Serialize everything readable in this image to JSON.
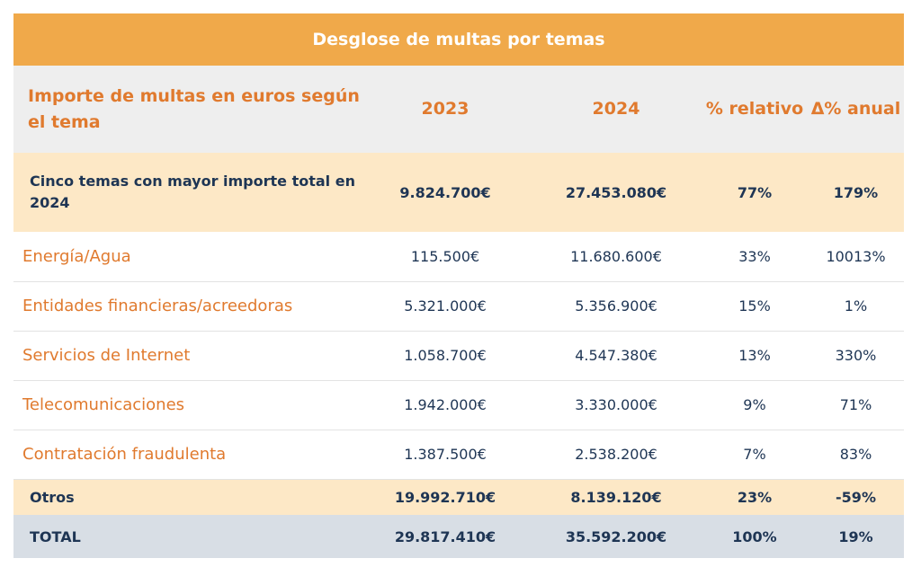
{
  "title": "Desglose de multas por temas",
  "colors": {
    "header_bg": "#F0A94A",
    "accent": "#E07A2E",
    "text_dark": "#1E3554",
    "highlight_row": "#FDE8C6",
    "column_header_bg": "#EEEEEE",
    "total_row": "#D8DEE5"
  },
  "columns": {
    "topic": "Importe de multas en euros según el tema",
    "y2023": "2023",
    "y2024": "2024",
    "relative": "% relativo",
    "annual": "Δ% anual"
  },
  "summary": {
    "label": "Cinco temas con mayor importe total en 2024",
    "y2023": "9.824.700€",
    "y2024": "27.453.080€",
    "relative": "77%",
    "annual": "179%"
  },
  "rows": [
    {
      "label": "Energía/Agua",
      "y2023": "115.500€",
      "y2024": "11.680.600€",
      "relative": "33%",
      "annual": "10013%"
    },
    {
      "label": "Entidades financieras/acreedoras",
      "y2023": "5.321.000€",
      "y2024": "5.356.900€",
      "relative": "15%",
      "annual": "1%"
    },
    {
      "label": "Servicios de Internet",
      "y2023": "1.058.700€",
      "y2024": "4.547.380€",
      "relative": "13%",
      "annual": "330%"
    },
    {
      "label": "Telecomunicaciones",
      "y2023": "1.942.000€",
      "y2024": "3.330.000€",
      "relative": "9%",
      "annual": "71%"
    },
    {
      "label": "Contratación fraudulenta",
      "y2023": "1.387.500€",
      "y2024": "2.538.200€",
      "relative": "7%",
      "annual": "83%"
    }
  ],
  "otros": {
    "label": "Otros",
    "y2023": "19.992.710€",
    "y2024": "8.139.120€",
    "relative": "23%",
    "annual": "-59%"
  },
  "total": {
    "label": "TOTAL",
    "y2023": "29.817.410€",
    "y2024": "35.592.200€",
    "relative": "100%",
    "annual": "19%"
  }
}
